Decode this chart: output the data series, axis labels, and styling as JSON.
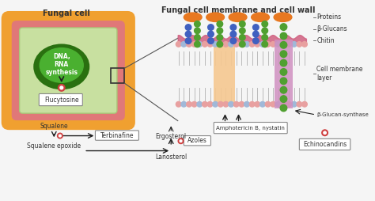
{
  "title_left": "Fungal cell",
  "title_right": "Fungal cell membrane and cell wall",
  "labels": {
    "proteins": "Proteins",
    "beta_glucans": "β-Glucans",
    "chitin": "Chitin",
    "cell_membrane": "Cell membrane\nlayer",
    "beta_glucan_synthase": "β-Glucan-synthase",
    "ergosterol": "Ergosterol",
    "ampho": "Amphotericin B, nystatin",
    "azoles": "Azoles",
    "echinocandins": "Echinocandins",
    "squalene": "Squalene",
    "squalene_epoxide": "Squalene epoxide",
    "terbinafine": "Terbinafine",
    "flucytosine": "Flucytosine",
    "lanosterol": "Lanosterol",
    "dna_rna": "DNA,\nRNA\nsynthesis"
  },
  "colors": {
    "bg_color": "#f5f5f5",
    "orange_outer": "#F0A030",
    "pink_mid": "#E07878",
    "green_cell": "#C8E0A0",
    "dark_green": "#3A9020",
    "nucleus_dark": "#2A7010",
    "nucleus_light": "#4AB030",
    "membrane_pink": "#E8A0A0",
    "membrane_blue": "#A0B8D8",
    "protein_orange": "#E87820",
    "glucan_green": "#50A030",
    "glucan_blue": "#4060C0",
    "chitin_pink": "#D06080",
    "ergosterol_peach": "#F5C890",
    "glucan_synthase_purple": "#D090C0",
    "drug_box": "#E8E8E8",
    "arrow_color": "#202020",
    "inhibitor_red": "#D04040"
  }
}
